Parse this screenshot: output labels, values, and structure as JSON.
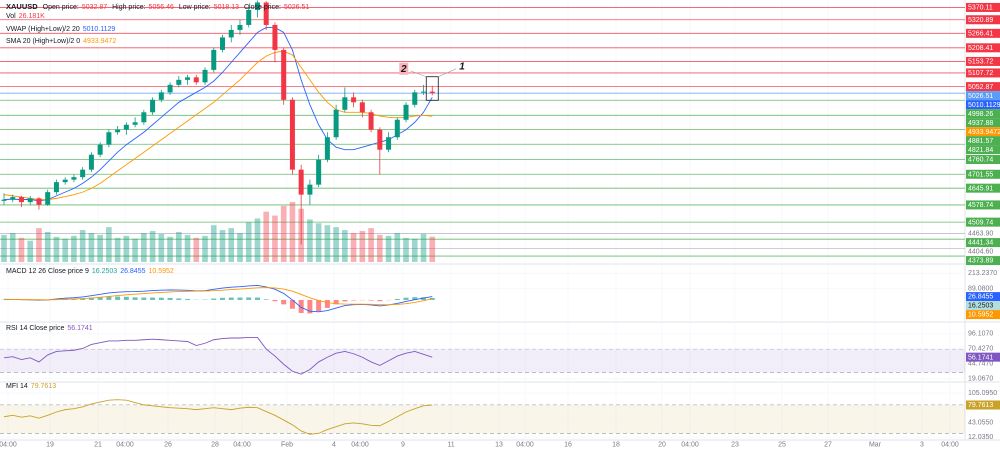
{
  "symbol": "XAUUSD",
  "header_labels": [
    "Open price:",
    "High price:",
    "Low price:",
    "Close price:"
  ],
  "chart_data": [
    {
      "type": "candlestick",
      "ylim": [
        4350,
        5400
      ],
      "up_color": "#089981",
      "down_color": "#f23645",
      "open": [
        4595,
        4600,
        4610,
        4590,
        4605,
        4580,
        4630,
        4670,
        4680,
        4690,
        4720,
        4780,
        4820,
        4870,
        4880,
        4900,
        4910,
        4950,
        5000,
        5030,
        5060,
        5080,
        5090,
        5070,
        5120,
        5200,
        5250,
        5280,
        5300,
        5360,
        5390,
        5300,
        5200,
        5000,
        4720,
        4620,
        4660,
        4760,
        4850,
        4960,
        5010,
        4990,
        4950,
        4880,
        4800,
        4850,
        4920,
        4980,
        5030,
        5032.87
      ],
      "high": [
        4625,
        4620,
        4615,
        4615,
        4610,
        4640,
        4680,
        4690,
        4700,
        4730,
        4790,
        4830,
        4880,
        4895,
        4910,
        4930,
        4960,
        5010,
        5040,
        5070,
        5095,
        5100,
        5100,
        5130,
        5210,
        5260,
        5300,
        5320,
        5380,
        5398,
        5395,
        5310,
        5210,
        5010,
        4740,
        4680,
        4780,
        4870,
        4980,
        5050,
        5030,
        5000,
        4960,
        4890,
        4870,
        4930,
        4990,
        5040,
        5060,
        5056.46
      ],
      "low": [
        4580,
        4590,
        4570,
        4580,
        4560,
        4575,
        4620,
        4660,
        4670,
        4680,
        4710,
        4770,
        4810,
        4860,
        4860,
        4890,
        4900,
        4940,
        4990,
        5020,
        5050,
        5060,
        5060,
        5060,
        5110,
        5190,
        5230,
        5260,
        5290,
        5330,
        5280,
        5150,
        4980,
        4700,
        4420,
        4580,
        4650,
        4750,
        4840,
        4950,
        4970,
        4930,
        4870,
        4700,
        4790,
        4840,
        4910,
        4970,
        5020,
        5018.13
      ],
      "close": [
        4600,
        4610,
        4590,
        4605,
        4580,
        4630,
        4670,
        4680,
        4690,
        4720,
        4780,
        4820,
        4870,
        4880,
        4900,
        4910,
        4950,
        5000,
        5030,
        5060,
        5080,
        5090,
        5070,
        5120,
        5200,
        5250,
        5280,
        5300,
        5360,
        5390,
        5300,
        5200,
        5000,
        4720,
        4620,
        4660,
        4760,
        4850,
        4960,
        5010,
        4990,
        4950,
        4880,
        4800,
        4850,
        4920,
        4980,
        5030,
        5032.87,
        5026.51
      ],
      "volume": {
        "name": "Vol",
        "last_label": "26.181K",
        "values": [
          28000,
          30000,
          25000,
          22000,
          35000,
          31000,
          26000,
          24000,
          27000,
          33000,
          30000,
          28000,
          36000,
          25000,
          27000,
          24000,
          30000,
          32000,
          29000,
          26000,
          31000,
          28000,
          25000,
          27000,
          38000,
          33000,
          35000,
          30000,
          41000,
          45000,
          52000,
          48000,
          58000,
          62000,
          55000,
          44000,
          40000,
          38000,
          36000,
          33000,
          30000,
          32000,
          35000,
          28000,
          27000,
          30000,
          25000,
          24000,
          29000,
          26181
        ]
      },
      "series": [
        {
          "name": "VWAP (High+Low)/2 20",
          "color": "#2962ff",
          "values": [
            4600,
            4602,
            4600,
            4601,
            4595,
            4600,
            4615,
            4630,
            4645,
            4665,
            4690,
            4720,
            4755,
            4790,
            4820,
            4845,
            4870,
            4900,
            4930,
            4960,
            4990,
            5010,
            5030,
            5050,
            5075,
            5110,
            5150,
            5190,
            5230,
            5270,
            5290,
            5290,
            5270,
            5200,
            5080,
            4980,
            4900,
            4840,
            4810,
            4800,
            4800,
            4810,
            4820,
            4830,
            4840,
            4860,
            4880,
            4910,
            4950,
            5010.1129
          ]
        },
        {
          "name": "SMA 20 (High+Low)/2 0",
          "color": "#ff9800",
          "values": [
            4620,
            4615,
            4610,
            4605,
            4600,
            4600,
            4605,
            4612,
            4620,
            4630,
            4645,
            4665,
            4690,
            4715,
            4740,
            4765,
            4790,
            4815,
            4840,
            4865,
            4890,
            4915,
            4940,
            4965,
            4990,
            5020,
            5050,
            5080,
            5115,
            5150,
            5175,
            5190,
            5195,
            5180,
            5130,
            5080,
            5030,
            4990,
            4960,
            4950,
            4950,
            4950,
            4945,
            4935,
            4930,
            4928,
            4930,
            4935,
            4938,
            4933.9472
          ]
        }
      ],
      "price_levels": [
        {
          "price": 5370.11,
          "color": "#f23645"
        },
        {
          "price": 5320.89,
          "color": "#f23645"
        },
        {
          "price": 5266.41,
          "color": "#f23645"
        },
        {
          "price": 5208.41,
          "color": "#f23645"
        },
        {
          "price": 5153.72,
          "color": "#f23645"
        },
        {
          "price": 5107.72,
          "color": "#f23645"
        },
        {
          "price": 5052.87,
          "color": "#f23645"
        },
        {
          "price": 5026.51,
          "color": "#5b9cf6"
        },
        {
          "price": 4998.26,
          "color": "#4caf50"
        },
        {
          "price": 4937.88,
          "color": "#4caf50"
        },
        {
          "price": 4881.57,
          "color": "#4caf50"
        },
        {
          "price": 4821.84,
          "color": "#4caf50"
        },
        {
          "price": 4760.74,
          "color": "#4caf50"
        },
        {
          "price": 4701.55,
          "color": "#4caf50"
        },
        {
          "price": 4645.91,
          "color": "#4caf50"
        },
        {
          "price": 4578.74,
          "color": "#4caf50"
        },
        {
          "price": 4509.74,
          "color": "#4caf50"
        },
        {
          "price": 4463.9,
          "label": "4463.90",
          "color": "#b2b5be"
        },
        {
          "price": 4441.34,
          "color": "#4caf50"
        },
        {
          "price": 4404.6,
          "label": "4404.60",
          "color": "#b2b5be"
        },
        {
          "price": 4373.89,
          "color": "#4caf50"
        }
      ],
      "annotations": [
        {
          "text": "1"
        },
        {
          "text": "2"
        }
      ]
    },
    {
      "type": "macd",
      "title": "MACD 12 26 Close price 9",
      "ylim": [
        -160,
        271
      ],
      "yticks": [
        {
          "value": 213.237,
          "label": "213.2370"
        },
        {
          "value": 89.08,
          "label": "89.0800"
        }
      ],
      "histogram": {
        "up_color": "#26a69a",
        "down_color": "#ff5252",
        "values": [
          2,
          0.8,
          -1,
          -1.6,
          -3.7,
          -1.4,
          5.3,
          9.1,
          10.5,
          13.2,
          18.6,
          23.7,
          27.8,
          27,
          25,
          21,
          19,
          19,
          18,
          16,
          12,
          8,
          2,
          3,
          11,
          17,
          19,
          19,
          20,
          19,
          5,
          -10,
          -35,
          -70,
          -104,
          -107,
          -90,
          -64,
          -35,
          -12,
          -4,
          -2,
          -5,
          -10,
          -2,
          8,
          18,
          22,
          21,
          16.2503
        ]
      },
      "macd": {
        "color": "#2962ff",
        "values": [
          5,
          4,
          2,
          1,
          -2,
          0,
          8,
          14,
          18,
          24,
          34,
          45,
          56,
          62,
          66,
          67,
          70,
          75,
          78,
          80,
          79,
          77,
          72,
          74,
          85,
          95,
          102,
          106,
          112,
          116,
          104,
          86,
          52,
          0,
          -60,
          -90,
          -95,
          -85,
          -65,
          -45,
          -38,
          -36,
          -40,
          -48,
          -40,
          -28,
          -12,
          2,
          15,
          26.8455
        ]
      },
      "signal": {
        "color": "#ff9800",
        "values": [
          3,
          3.2,
          3,
          2.6,
          1.7,
          1.4,
          2.7,
          4.9,
          7.5,
          10.8,
          15.4,
          21.3,
          28.2,
          35,
          41,
          46,
          51,
          56,
          60,
          64,
          67,
          69,
          70,
          71,
          74,
          78,
          83,
          87,
          92,
          97,
          99,
          96,
          87,
          70,
          44,
          17,
          -5,
          -21,
          -30,
          -33,
          -34,
          -34,
          -35,
          -38,
          -38,
          -36,
          -30,
          -20,
          -6,
          10.5952
        ]
      }
    },
    {
      "type": "rsi",
      "title": "RSI 14 Close price",
      "ylim": [
        17,
        113
      ],
      "color": "#7e57c2",
      "bands": [
        30,
        70
      ],
      "yticks": [
        {
          "value": 96.107,
          "label": "96.1070"
        },
        {
          "value": 70.427,
          "label": "70.4270"
        },
        {
          "value": 44.747,
          "label": "44.7470"
        },
        {
          "value": 19.067,
          "label": "19.0670"
        }
      ],
      "values": [
        55,
        57,
        52,
        55,
        48,
        60,
        66,
        67,
        68,
        71,
        78,
        81,
        84,
        84,
        85,
        85,
        86,
        87,
        86,
        85,
        84,
        83,
        76,
        80,
        86,
        88,
        89,
        89,
        90,
        90,
        70,
        58,
        44,
        32,
        27,
        35,
        48,
        56,
        63,
        66,
        62,
        56,
        48,
        42,
        50,
        58,
        63,
        66,
        61,
        56.1741
      ]
    },
    {
      "type": "rsi",
      "title": "MFI 14",
      "ylim": [
        6,
        124
      ],
      "color": "#c9a227",
      "bands": [
        20,
        80
      ],
      "yticks": [
        {
          "value": 105.095,
          "label": "105.0950"
        },
        {
          "value": 74.075,
          "label": "74.0750"
        },
        {
          "value": 43.055,
          "label": "43.0550"
        },
        {
          "value": 12.035,
          "label": "12.0350"
        }
      ],
      "values": [
        55,
        58,
        54,
        57,
        52,
        58,
        65,
        70,
        72,
        76,
        82,
        86,
        90,
        91,
        90,
        85,
        80,
        78,
        76,
        74,
        73,
        72,
        70,
        72,
        74,
        72,
        70,
        73,
        75,
        74,
        66,
        58,
        48,
        38,
        25,
        18,
        20,
        28,
        34,
        40,
        42,
        40,
        37,
        36,
        45,
        55,
        65,
        72,
        78,
        79.7613
      ]
    }
  ],
  "x_axis": {
    "labels": [
      "04:00",
      "19",
      "21",
      "04:00",
      "26",
      "28",
      "04:00",
      "Feb",
      "4",
      "04:00",
      "9",
      "11",
      "13",
      "04:00",
      "16",
      "18",
      "20",
      "04:00",
      "23",
      "25",
      "27",
      "Mar",
      "3",
      "04:00"
    ]
  }
}
